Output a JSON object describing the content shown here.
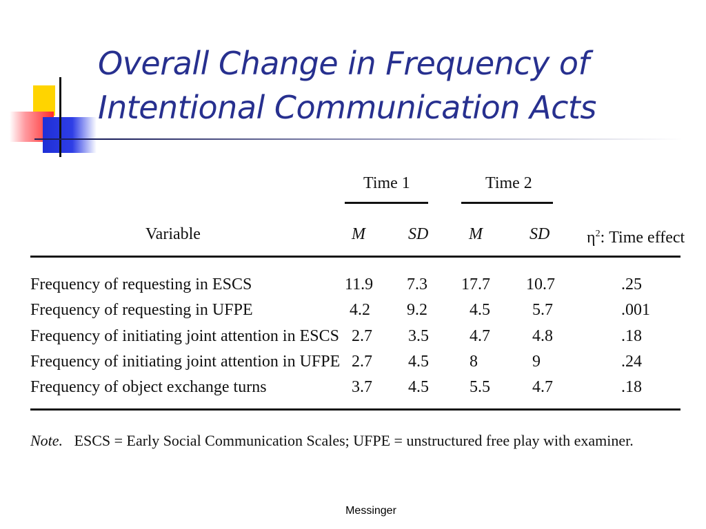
{
  "slide": {
    "title_line1": "Overall Change in Frequency of",
    "title_line2": "Intentional Communication Acts",
    "footer": "Messinger"
  },
  "table": {
    "group_headers": [
      "Time 1",
      "Time 2"
    ],
    "columns": [
      "Variable",
      "M",
      "SD",
      "M",
      "SD",
      "η²: Time effect"
    ],
    "eta_symbol": "η",
    "eta_sup": "2",
    "eta_label": ": Time effect",
    "rows": [
      {
        "variable": "Frequency of requesting in ESCS",
        "t1_m": "11.9",
        "t1_sd": "7.3",
        "t2_m": "17.7",
        "t2_sd": "10.7",
        "eta": ".25"
      },
      {
        "variable": "Frequency of requesting in UFPE",
        "t1_m": "4.2",
        "t1_sd": "9.2",
        "t2_m": "4.5",
        "t2_sd": "5.7",
        "eta": ".001"
      },
      {
        "variable": "Frequency of initiating joint attention in ESCS",
        "t1_m": "2.7",
        "t1_sd": "3.5",
        "t2_m": "4.7",
        "t2_sd": "4.8",
        "eta": ".18"
      },
      {
        "variable": "Frequency of initiating joint attention in UFPE",
        "t1_m": "2.7",
        "t1_sd": "4.5",
        "t2_m": "8",
        "t2_sd": "9",
        "eta": ".24"
      },
      {
        "variable": "Frequency of object exchange turns",
        "t1_m": "3.7",
        "t1_sd": "4.5",
        "t2_m": "5.5",
        "t2_sd": "4.7",
        "eta": ".18"
      }
    ],
    "note_label": "Note.",
    "note_text": "ESCS = Early Social Communication Scales; UFPE = unstructured free play with examiner."
  }
}
